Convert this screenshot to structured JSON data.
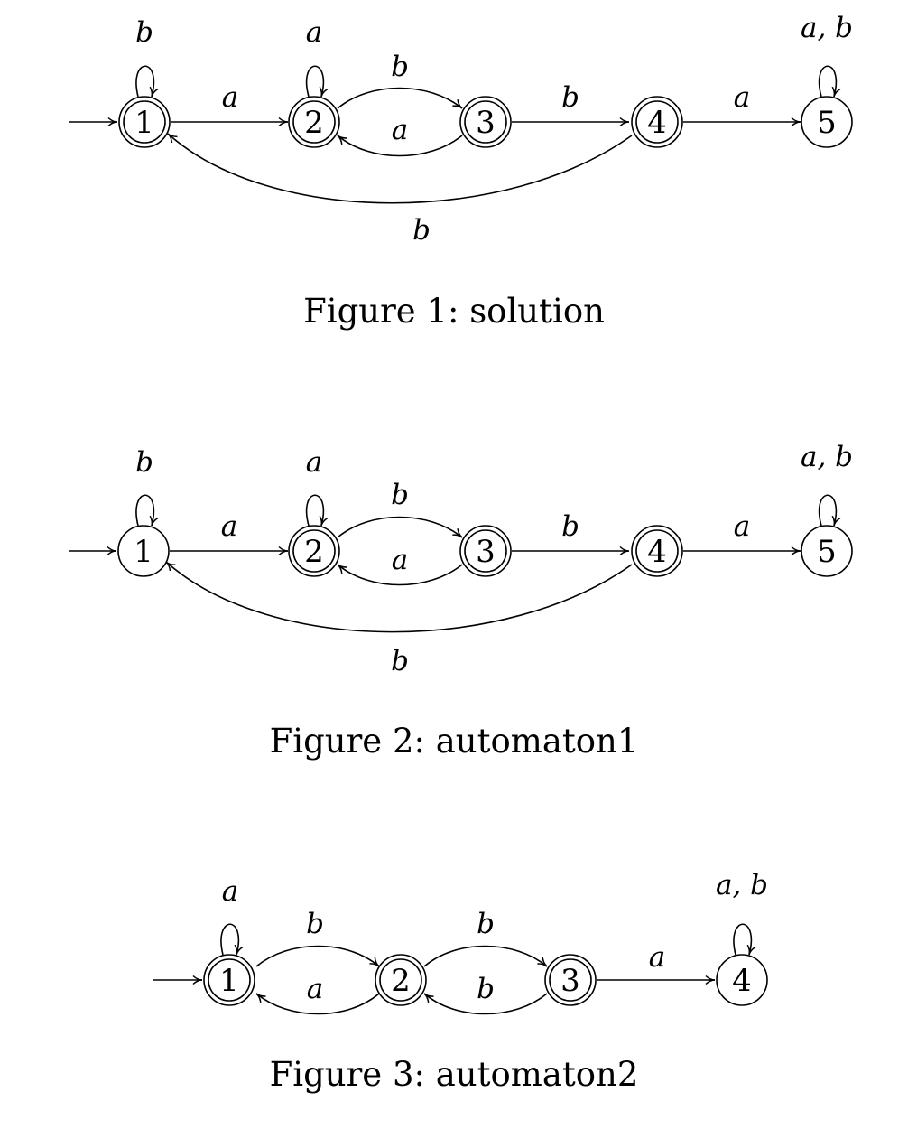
{
  "figures": [
    {
      "caption": "Figure 1: solution",
      "states": [
        {
          "id": "1",
          "accepting": true,
          "initial": true
        },
        {
          "id": "2",
          "accepting": true,
          "initial": false
        },
        {
          "id": "3",
          "accepting": true,
          "initial": false
        },
        {
          "id": "4",
          "accepting": true,
          "initial": false
        },
        {
          "id": "5",
          "accepting": false,
          "initial": false
        }
      ],
      "transitions": [
        {
          "from": "1",
          "to": "1",
          "label": "b"
        },
        {
          "from": "1",
          "to": "2",
          "label": "a"
        },
        {
          "from": "2",
          "to": "2",
          "label": "a"
        },
        {
          "from": "2",
          "to": "3",
          "label": "b"
        },
        {
          "from": "3",
          "to": "2",
          "label": "a"
        },
        {
          "from": "3",
          "to": "4",
          "label": "b"
        },
        {
          "from": "4",
          "to": "5",
          "label": "a"
        },
        {
          "from": "4",
          "to": "1",
          "label": "b"
        },
        {
          "from": "5",
          "to": "5",
          "label": "a, b"
        }
      ]
    },
    {
      "caption": "Figure 2: automaton1",
      "states": [
        {
          "id": "1",
          "accepting": false,
          "initial": true
        },
        {
          "id": "2",
          "accepting": true,
          "initial": false
        },
        {
          "id": "3",
          "accepting": true,
          "initial": false
        },
        {
          "id": "4",
          "accepting": true,
          "initial": false
        },
        {
          "id": "5",
          "accepting": false,
          "initial": false
        }
      ],
      "transitions": [
        {
          "from": "1",
          "to": "1",
          "label": "b"
        },
        {
          "from": "1",
          "to": "2",
          "label": "a"
        },
        {
          "from": "2",
          "to": "2",
          "label": "a"
        },
        {
          "from": "2",
          "to": "3",
          "label": "b"
        },
        {
          "from": "3",
          "to": "2",
          "label": "a"
        },
        {
          "from": "3",
          "to": "4",
          "label": "b"
        },
        {
          "from": "4",
          "to": "5",
          "label": "a"
        },
        {
          "from": "4",
          "to": "1",
          "label": "b"
        },
        {
          "from": "5",
          "to": "5",
          "label": "a, b"
        }
      ]
    },
    {
      "caption": "Figure 3: automaton2",
      "states": [
        {
          "id": "1",
          "accepting": true,
          "initial": true
        },
        {
          "id": "2",
          "accepting": true,
          "initial": false
        },
        {
          "id": "3",
          "accepting": true,
          "initial": false
        },
        {
          "id": "4",
          "accepting": false,
          "initial": false
        }
      ],
      "transitions": [
        {
          "from": "1",
          "to": "1",
          "label": "a"
        },
        {
          "from": "1",
          "to": "2",
          "label": "b"
        },
        {
          "from": "2",
          "to": "1",
          "label": "a"
        },
        {
          "from": "2",
          "to": "3",
          "label": "b"
        },
        {
          "from": "3",
          "to": "2",
          "label": "b"
        },
        {
          "from": "3",
          "to": "4",
          "label": "a"
        },
        {
          "from": "4",
          "to": "4",
          "label": "a, b"
        }
      ]
    }
  ]
}
